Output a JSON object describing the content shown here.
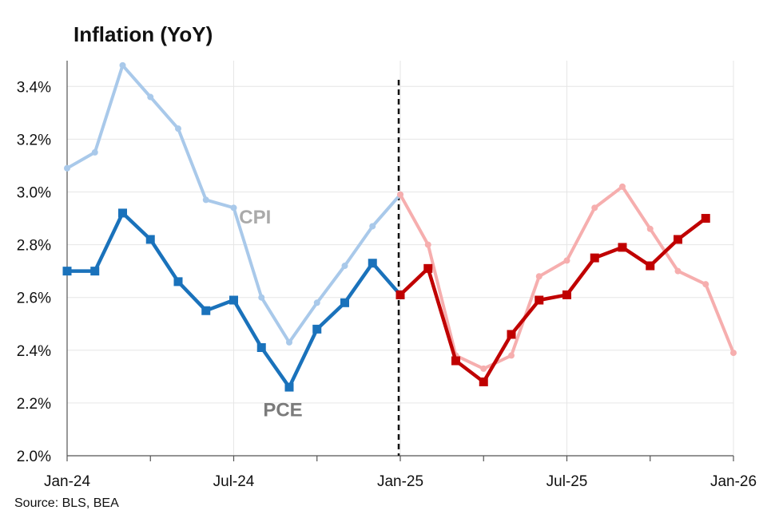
{
  "title": "Inflation (YoY)",
  "source": "Source: BLS, BEA",
  "chart_data": {
    "type": "line",
    "title": "Inflation (YoY)",
    "xlabel": "",
    "ylabel": "",
    "ylim": [
      2.0,
      3.5
    ],
    "y_ticks": [
      2.0,
      2.2,
      2.4,
      2.6,
      2.8,
      3.0,
      3.2,
      3.4
    ],
    "y_tick_labels": [
      "2.0%",
      "2.2%",
      "2.4%",
      "2.6%",
      "2.8%",
      "3.0%",
      "3.2%",
      "3.4%"
    ],
    "x_range": [
      "2024-01",
      "2026-01"
    ],
    "x_tick_labels": [
      {
        "date": "2024-01",
        "label": "Jan-24"
      },
      {
        "date": "2024-07",
        "label": "Jul-24"
      },
      {
        "date": "2025-01",
        "label": "Jan-25"
      },
      {
        "date": "2025-07",
        "label": "Jul-25"
      },
      {
        "date": "2026-01",
        "label": "Jan-26"
      }
    ],
    "minor_x_ticks": [
      "2024-04",
      "2024-10",
      "2025-04",
      "2025-10"
    ],
    "grid": true,
    "divider": {
      "date": "2025-01",
      "style": "dashed",
      "color": "#111111"
    },
    "series": [
      {
        "name": "CPI",
        "segment": "pre",
        "marker": "circle",
        "color": "#a9c9ea",
        "x": [
          "2024-01",
          "2024-02",
          "2024-03",
          "2024-04",
          "2024-05",
          "2024-06",
          "2024-07",
          "2024-08",
          "2024-09",
          "2024-10",
          "2024-11",
          "2024-12",
          "2025-01"
        ],
        "values": [
          3.09,
          3.15,
          3.48,
          3.36,
          3.24,
          2.97,
          2.94,
          2.6,
          2.43,
          2.58,
          2.72,
          2.87,
          2.99
        ]
      },
      {
        "name": "PCE",
        "segment": "pre",
        "marker": "square",
        "color": "#1a72bb",
        "x": [
          "2024-01",
          "2024-02",
          "2024-03",
          "2024-04",
          "2024-05",
          "2024-06",
          "2024-07",
          "2024-08",
          "2024-09",
          "2024-10",
          "2024-11",
          "2024-12",
          "2025-01"
        ],
        "values": [
          2.7,
          2.7,
          2.92,
          2.82,
          2.66,
          2.55,
          2.59,
          2.41,
          2.26,
          2.48,
          2.58,
          2.73,
          2.61
        ]
      },
      {
        "segment": "post",
        "marker": "circle",
        "color": "#f6aeae",
        "x": [
          "2025-01",
          "2025-02",
          "2025-03",
          "2025-04",
          "2025-05",
          "2025-06",
          "2025-07",
          "2025-08",
          "2025-09",
          "2025-10",
          "2025-11",
          "2025-12",
          "2026-01"
        ],
        "values": [
          2.99,
          2.8,
          2.38,
          2.33,
          2.38,
          2.68,
          2.74,
          2.94,
          3.02,
          2.86,
          2.7,
          2.65,
          2.39
        ]
      },
      {
        "segment": "post",
        "marker": "square",
        "color": "#c00000",
        "x": [
          "2025-01",
          "2025-02",
          "2025-03",
          "2025-04",
          "2025-05",
          "2025-06",
          "2025-07",
          "2025-08",
          "2025-09",
          "2025-10",
          "2025-11",
          "2025-12"
        ],
        "values": [
          2.61,
          2.71,
          2.36,
          2.28,
          2.46,
          2.59,
          2.61,
          2.75,
          2.79,
          2.72,
          2.82,
          2.9
        ]
      }
    ],
    "annotations": [
      {
        "text": "CPI",
        "x": "2024-08",
        "y": 2.88,
        "color": "#aaaaaa"
      },
      {
        "text": "PCE",
        "x": "2024-09",
        "y": 2.15,
        "color": "#7b7b7b"
      }
    ]
  }
}
